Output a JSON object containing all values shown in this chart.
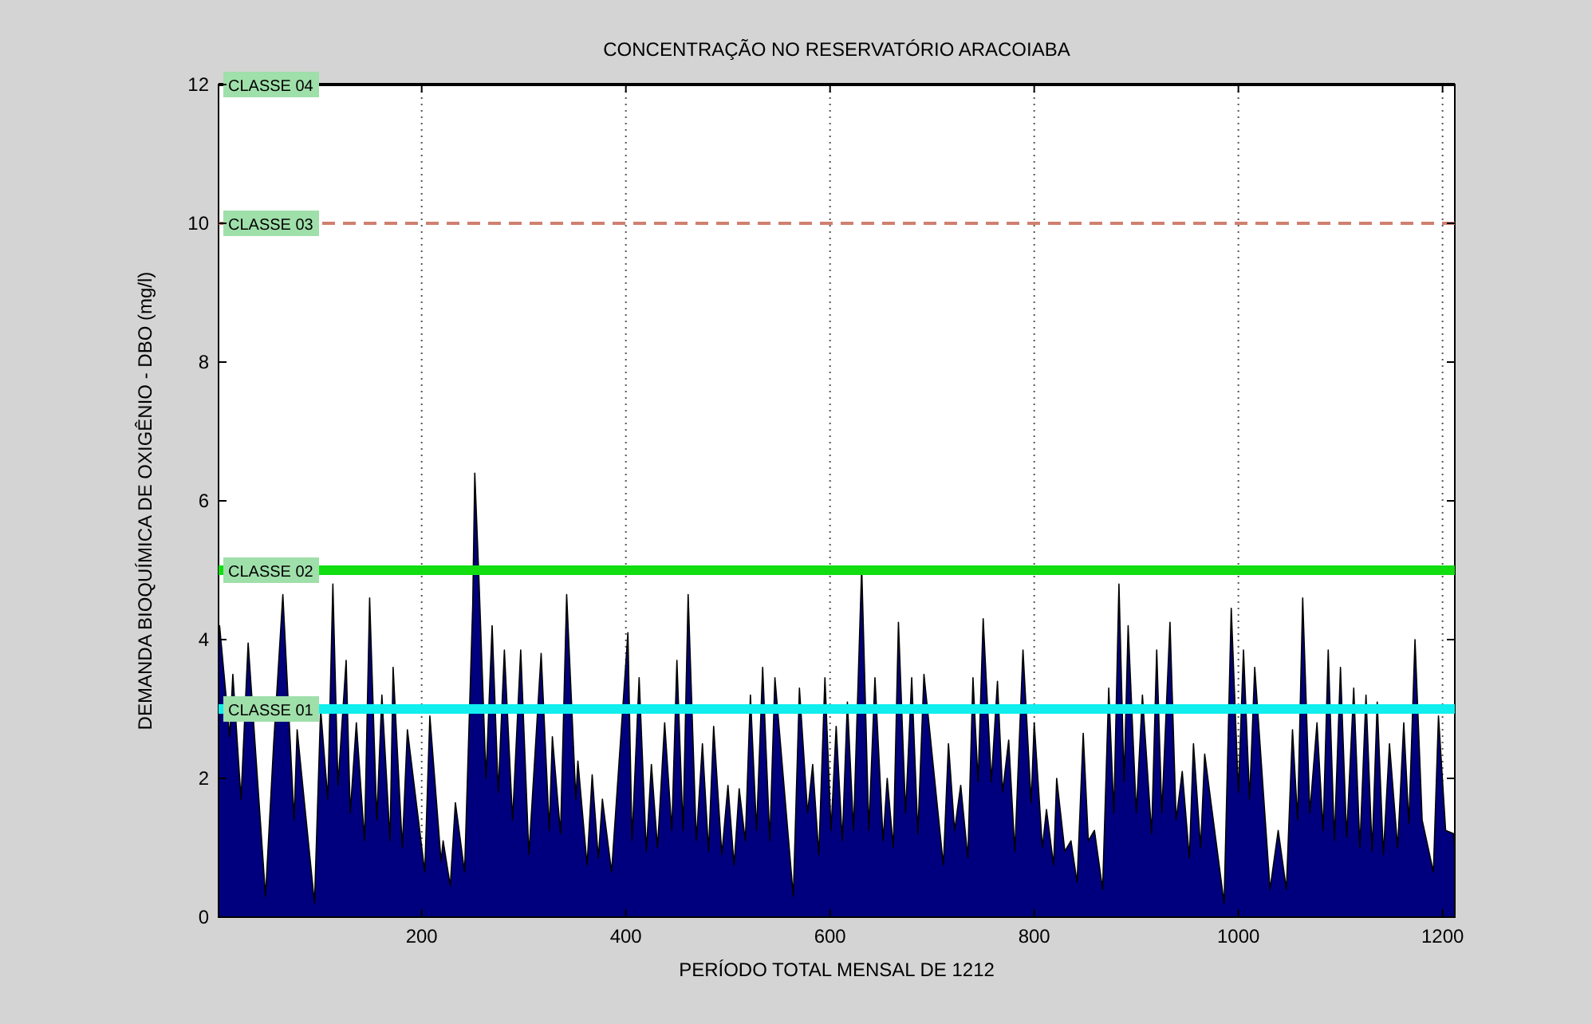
{
  "chart_data": {
    "type": "area",
    "title": "CONCENTRAÇÃO NO RESERVATÓRIO ARACOIABA",
    "xlabel": "PERÍODO TOTAL MENSAL DE 1212",
    "ylabel": "DEMANDA BIOQUÍMICA DE OXIGÊNIO - DBO (mg/l)",
    "xlim": [
      1,
      1212
    ],
    "ylim": [
      0,
      12
    ],
    "xticks": [
      200,
      400,
      600,
      800,
      1000,
      1200
    ],
    "yticks": [
      0,
      2,
      4,
      6,
      8,
      10,
      12
    ],
    "grid": "x",
    "ref_lines": [
      {
        "axis": "y",
        "value": 12,
        "label": "CLASSE 04",
        "color": "#000000",
        "line_style": "solid"
      },
      {
        "axis": "y",
        "value": 10,
        "label": "CLASSE 03",
        "color": "#d08070",
        "line_style": "dashed"
      },
      {
        "axis": "y",
        "value": 5,
        "label": "CLASSE 02",
        "color": "#11dd11",
        "line_style": "solid"
      },
      {
        "axis": "y",
        "value": 3,
        "label": "CLASSE 01",
        "color": "#11eeee",
        "line_style": "solid"
      }
    ],
    "series": [
      {
        "color": "#00007f",
        "x": [
          1,
          2,
          12,
          15,
          23,
          30,
          47,
          55,
          64,
          75,
          78,
          95,
          101,
          108,
          113,
          118,
          126,
          130,
          136,
          144,
          149,
          156,
          161,
          169,
          172,
          181,
          186,
          203,
          208,
          219,
          221,
          228,
          233,
          242,
          250,
          252,
          256,
          263,
          269,
          275,
          281,
          289,
          297,
          305,
          317,
          325,
          328,
          336,
          342,
          351,
          353,
          362,
          367,
          373,
          377,
          386,
          402,
          406,
          413,
          420,
          425,
          431,
          438,
          445,
          450,
          456,
          461,
          469,
          475,
          481,
          486,
          494,
          500,
          506,
          511,
          517,
          522,
          528,
          534,
          541,
          546,
          564,
          570,
          578,
          583,
          589,
          595,
          601,
          606,
          612,
          617,
          623,
          631,
          638,
          644,
          652,
          656,
          662,
          667,
          674,
          680,
          686,
          692,
          711,
          716,
          722,
          728,
          735,
          740,
          745,
          750,
          758,
          764,
          769,
          775,
          781,
          789,
          797,
          800,
          808,
          812,
          819,
          822,
          830,
          836,
          842,
          848,
          853,
          859,
          867,
          873,
          878,
          883,
          888,
          892,
          900,
          906,
          915,
          920,
          925,
          933,
          939,
          945,
          952,
          956,
          963,
          967,
          986,
          993,
          1000,
          1005,
          1011,
          1016,
          1031,
          1039,
          1047,
          1053,
          1058,
          1063,
          1070,
          1077,
          1083,
          1088,
          1094,
          1100,
          1106,
          1113,
          1119,
          1125,
          1131,
          1136,
          1142,
          1148,
          1156,
          1162,
          1167,
          1173,
          1180,
          1191,
          1196,
          1203,
          1211,
          1212
        ],
        "values": [
          4.0,
          4.2,
          2.6,
          3.5,
          1.7,
          3.95,
          0.3,
          2.5,
          4.65,
          1.4,
          2.7,
          0.2,
          3.0,
          1.7,
          4.8,
          1.9,
          3.7,
          1.5,
          2.8,
          1.1,
          4.6,
          1.4,
          3.2,
          1.1,
          3.6,
          1.0,
          2.7,
          0.65,
          2.9,
          0.8,
          1.1,
          0.45,
          1.65,
          0.65,
          4.5,
          6.4,
          4.9,
          2.0,
          4.2,
          1.8,
          3.85,
          1.4,
          3.85,
          0.9,
          3.8,
          1.25,
          2.6,
          1.2,
          4.65,
          1.7,
          2.25,
          0.75,
          2.05,
          0.85,
          1.7,
          0.65,
          4.1,
          1.1,
          3.45,
          0.95,
          2.2,
          1.0,
          2.8,
          1.25,
          3.7,
          1.25,
          4.65,
          1.1,
          2.5,
          0.95,
          2.75,
          0.9,
          1.9,
          0.75,
          1.85,
          1.1,
          3.2,
          1.25,
          3.6,
          1.1,
          3.45,
          0.3,
          3.3,
          1.5,
          2.2,
          0.9,
          3.45,
          1.25,
          2.75,
          1.1,
          3.1,
          1.25,
          5.05,
          1.25,
          3.45,
          1.1,
          2.0,
          1.0,
          4.25,
          1.5,
          3.45,
          1.2,
          3.5,
          0.75,
          2.5,
          1.25,
          1.9,
          0.85,
          3.45,
          1.95,
          4.3,
          1.95,
          3.4,
          1.8,
          2.55,
          0.95,
          3.85,
          1.65,
          2.8,
          1.0,
          1.55,
          0.75,
          2.0,
          0.95,
          1.1,
          0.5,
          2.65,
          1.1,
          1.25,
          0.4,
          3.3,
          1.5,
          4.8,
          1.95,
          4.2,
          1.5,
          3.2,
          1.2,
          3.85,
          1.5,
          4.25,
          1.4,
          2.1,
          0.85,
          2.5,
          1.0,
          2.35,
          0.2,
          4.45,
          1.8,
          3.85,
          1.7,
          3.6,
          0.4,
          1.25,
          0.4,
          2.7,
          1.4,
          4.6,
          1.5,
          2.8,
          1.25,
          3.85,
          1.1,
          3.6,
          1.15,
          3.3,
          1.0,
          3.2,
          0.95,
          3.1,
          0.9,
          2.5,
          1.0,
          2.8,
          1.35,
          4.0,
          1.4,
          0.65,
          2.9,
          1.25,
          1.2,
          0.9
        ]
      }
    ]
  }
}
